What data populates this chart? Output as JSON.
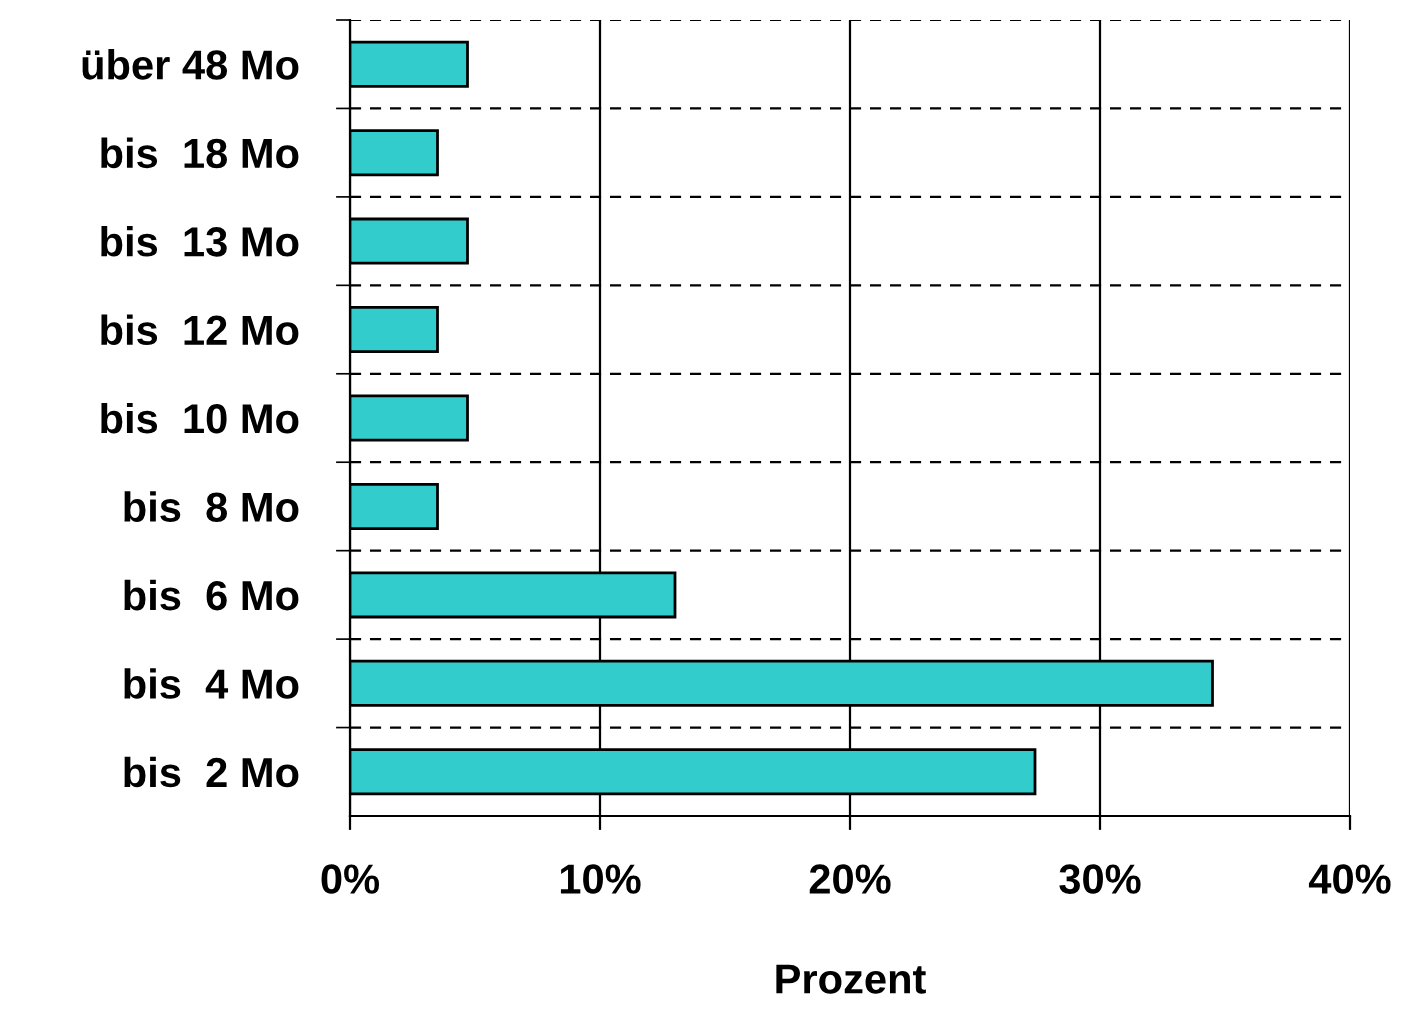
{
  "chart_data": {
    "type": "bar",
    "orientation": "horizontal",
    "xlabel": "Prozent",
    "categories": [
      "über 48 Mo",
      "bis  18 Mo",
      "bis  13 Mo",
      "bis  12 Mo",
      "bis  10 Mo",
      "bis  8 Mo",
      "bis  6 Mo",
      "bis  4 Mo",
      "bis  2 Mo"
    ],
    "values": [
      4.7,
      3.5,
      4.7,
      3.5,
      4.7,
      3.5,
      13.0,
      34.5,
      27.4
    ],
    "color": "#33cccc",
    "xlim": [
      0,
      40
    ],
    "xticks": [
      {
        "value": 0,
        "label": "0%"
      },
      {
        "value": 10,
        "label": "10%"
      },
      {
        "value": 20,
        "label": "20%"
      },
      {
        "value": 30,
        "label": "30%"
      },
      {
        "value": 40,
        "label": "40%"
      }
    ],
    "grid": true,
    "legend": false
  }
}
